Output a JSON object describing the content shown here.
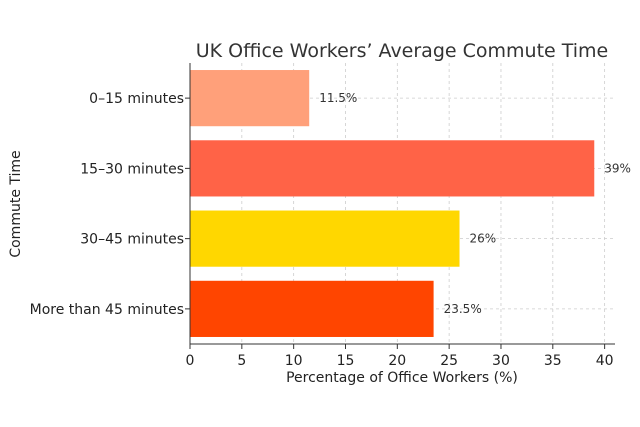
{
  "chart_data": {
    "type": "bar",
    "orientation": "horizontal",
    "title": "UK Office Workers’ Average Commute Time",
    "xlabel": "Percentage of Office Workers (%)",
    "ylabel": "Commute Time",
    "categories": [
      "0–15 minutes",
      "15–30 minutes",
      "30–45 minutes",
      "More than 45 minutes"
    ],
    "values": [
      11.5,
      39,
      26,
      23.5
    ],
    "value_labels": [
      "11.5%",
      "39%",
      "26%",
      "23.5%"
    ],
    "colors": [
      "#FFA07A",
      "#FF6347",
      "#FFD700",
      "#FF4500"
    ],
    "xlim": [
      0,
      41
    ],
    "xticks": [
      0,
      5,
      10,
      15,
      20,
      25,
      30,
      35,
      40
    ],
    "grid": true
  }
}
